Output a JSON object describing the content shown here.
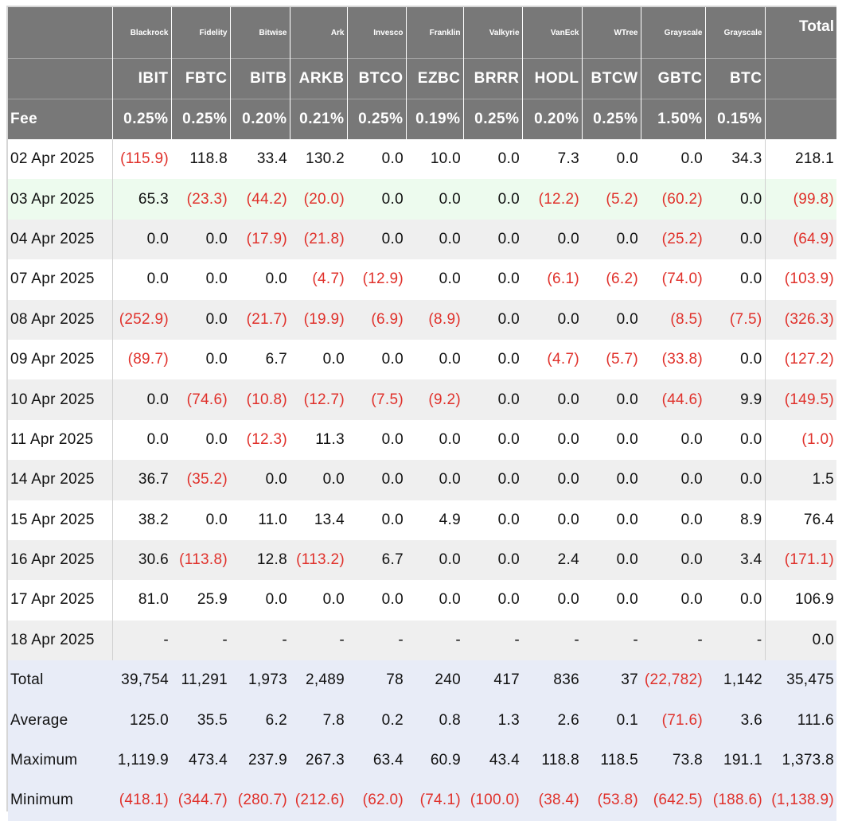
{
  "issuers": [
    "Blackrock",
    "Fidelity",
    "Bitwise",
    "Ark",
    "Invesco",
    "Franklin",
    "Valkyrie",
    "VanEck",
    "WTree",
    "Grayscale",
    "Grayscale"
  ],
  "tickers": [
    "IBIT",
    "FBTC",
    "BITB",
    "ARKB",
    "BTCO",
    "EZBC",
    "BRRR",
    "HODL",
    "BTCW",
    "GBTC",
    "BTC"
  ],
  "fees": [
    "0.25%",
    "0.25%",
    "0.20%",
    "0.21%",
    "0.25%",
    "0.19%",
    "0.25%",
    "0.20%",
    "0.25%",
    "1.50%",
    "0.15%"
  ],
  "labels": {
    "total_header": "Total",
    "fee": "Fee"
  },
  "colors": {
    "header_bg": "#787878",
    "negative": "#e0312b",
    "highlight_row": "#edfbee",
    "stripe_row": "#efefef",
    "summary_row": "#e8ecf7"
  },
  "rows": [
    {
      "date": "02 Apr 2025",
      "style": "white",
      "values": [
        "(115.9)",
        "118.8",
        "33.4",
        "130.2",
        "0.0",
        "10.0",
        "0.0",
        "7.3",
        "0.0",
        "0.0",
        "34.3",
        "218.1"
      ]
    },
    {
      "date": "03 Apr 2025",
      "style": "green",
      "values": [
        "65.3",
        "(23.3)",
        "(44.2)",
        "(20.0)",
        "0.0",
        "0.0",
        "0.0",
        "(12.2)",
        "(5.2)",
        "(60.2)",
        "0.0",
        "(99.8)"
      ]
    },
    {
      "date": "04 Apr 2025",
      "style": "gray",
      "values": [
        "0.0",
        "0.0",
        "(17.9)",
        "(21.8)",
        "0.0",
        "0.0",
        "0.0",
        "0.0",
        "0.0",
        "(25.2)",
        "0.0",
        "(64.9)"
      ]
    },
    {
      "date": "07 Apr 2025",
      "style": "white",
      "values": [
        "0.0",
        "0.0",
        "0.0",
        "(4.7)",
        "(12.9)",
        "0.0",
        "0.0",
        "(6.1)",
        "(6.2)",
        "(74.0)",
        "0.0",
        "(103.9)"
      ]
    },
    {
      "date": "08 Apr 2025",
      "style": "gray",
      "values": [
        "(252.9)",
        "0.0",
        "(21.7)",
        "(19.9)",
        "(6.9)",
        "(8.9)",
        "0.0",
        "0.0",
        "0.0",
        "(8.5)",
        "(7.5)",
        "(326.3)"
      ]
    },
    {
      "date": "09 Apr 2025",
      "style": "white",
      "values": [
        "(89.7)",
        "0.0",
        "6.7",
        "0.0",
        "0.0",
        "0.0",
        "0.0",
        "(4.7)",
        "(5.7)",
        "(33.8)",
        "0.0",
        "(127.2)"
      ]
    },
    {
      "date": "10 Apr 2025",
      "style": "gray",
      "values": [
        "0.0",
        "(74.6)",
        "(10.8)",
        "(12.7)",
        "(7.5)",
        "(9.2)",
        "0.0",
        "0.0",
        "0.0",
        "(44.6)",
        "9.9",
        "(149.5)"
      ]
    },
    {
      "date": "11 Apr 2025",
      "style": "white",
      "values": [
        "0.0",
        "0.0",
        "(12.3)",
        "11.3",
        "0.0",
        "0.0",
        "0.0",
        "0.0",
        "0.0",
        "0.0",
        "0.0",
        "(1.0)"
      ]
    },
    {
      "date": "14 Apr 2025",
      "style": "gray",
      "values": [
        "36.7",
        "(35.2)",
        "0.0",
        "0.0",
        "0.0",
        "0.0",
        "0.0",
        "0.0",
        "0.0",
        "0.0",
        "0.0",
        "1.5"
      ]
    },
    {
      "date": "15 Apr 2025",
      "style": "white",
      "values": [
        "38.2",
        "0.0",
        "11.0",
        "13.4",
        "0.0",
        "4.9",
        "0.0",
        "0.0",
        "0.0",
        "0.0",
        "8.9",
        "76.4"
      ]
    },
    {
      "date": "16 Apr 2025",
      "style": "gray",
      "values": [
        "30.6",
        "(113.8)",
        "12.8",
        "(113.2)",
        "6.7",
        "0.0",
        "0.0",
        "2.4",
        "0.0",
        "0.0",
        "3.4",
        "(171.1)"
      ]
    },
    {
      "date": "17 Apr 2025",
      "style": "white",
      "values": [
        "81.0",
        "25.9",
        "0.0",
        "0.0",
        "0.0",
        "0.0",
        "0.0",
        "0.0",
        "0.0",
        "0.0",
        "0.0",
        "106.9"
      ]
    },
    {
      "date": "18 Apr 2025",
      "style": "gray",
      "values": [
        "-",
        "-",
        "-",
        "-",
        "-",
        "-",
        "-",
        "-",
        "-",
        "-",
        "-",
        "0.0"
      ]
    }
  ],
  "summary": [
    {
      "label": "Total",
      "values": [
        "39,754",
        "11,291",
        "1,973",
        "2,489",
        "78",
        "240",
        "417",
        "836",
        "37",
        "(22,782)",
        "1,142",
        "35,475"
      ]
    },
    {
      "label": "Average",
      "values": [
        "125.0",
        "35.5",
        "6.2",
        "7.8",
        "0.2",
        "0.8",
        "1.3",
        "2.6",
        "0.1",
        "(71.6)",
        "3.6",
        "111.6"
      ]
    },
    {
      "label": "Maximum",
      "values": [
        "1,119.9",
        "473.4",
        "237.9",
        "267.3",
        "63.4",
        "60.9",
        "43.4",
        "118.8",
        "118.5",
        "73.8",
        "191.1",
        "1,373.8"
      ]
    },
    {
      "label": "Minimum",
      "values": [
        "(418.1)",
        "(344.7)",
        "(280.7)",
        "(212.6)",
        "(62.0)",
        "(74.1)",
        "(100.0)",
        "(38.4)",
        "(53.8)",
        "(642.5)",
        "(188.6)",
        "(1,138.9)"
      ]
    }
  ]
}
